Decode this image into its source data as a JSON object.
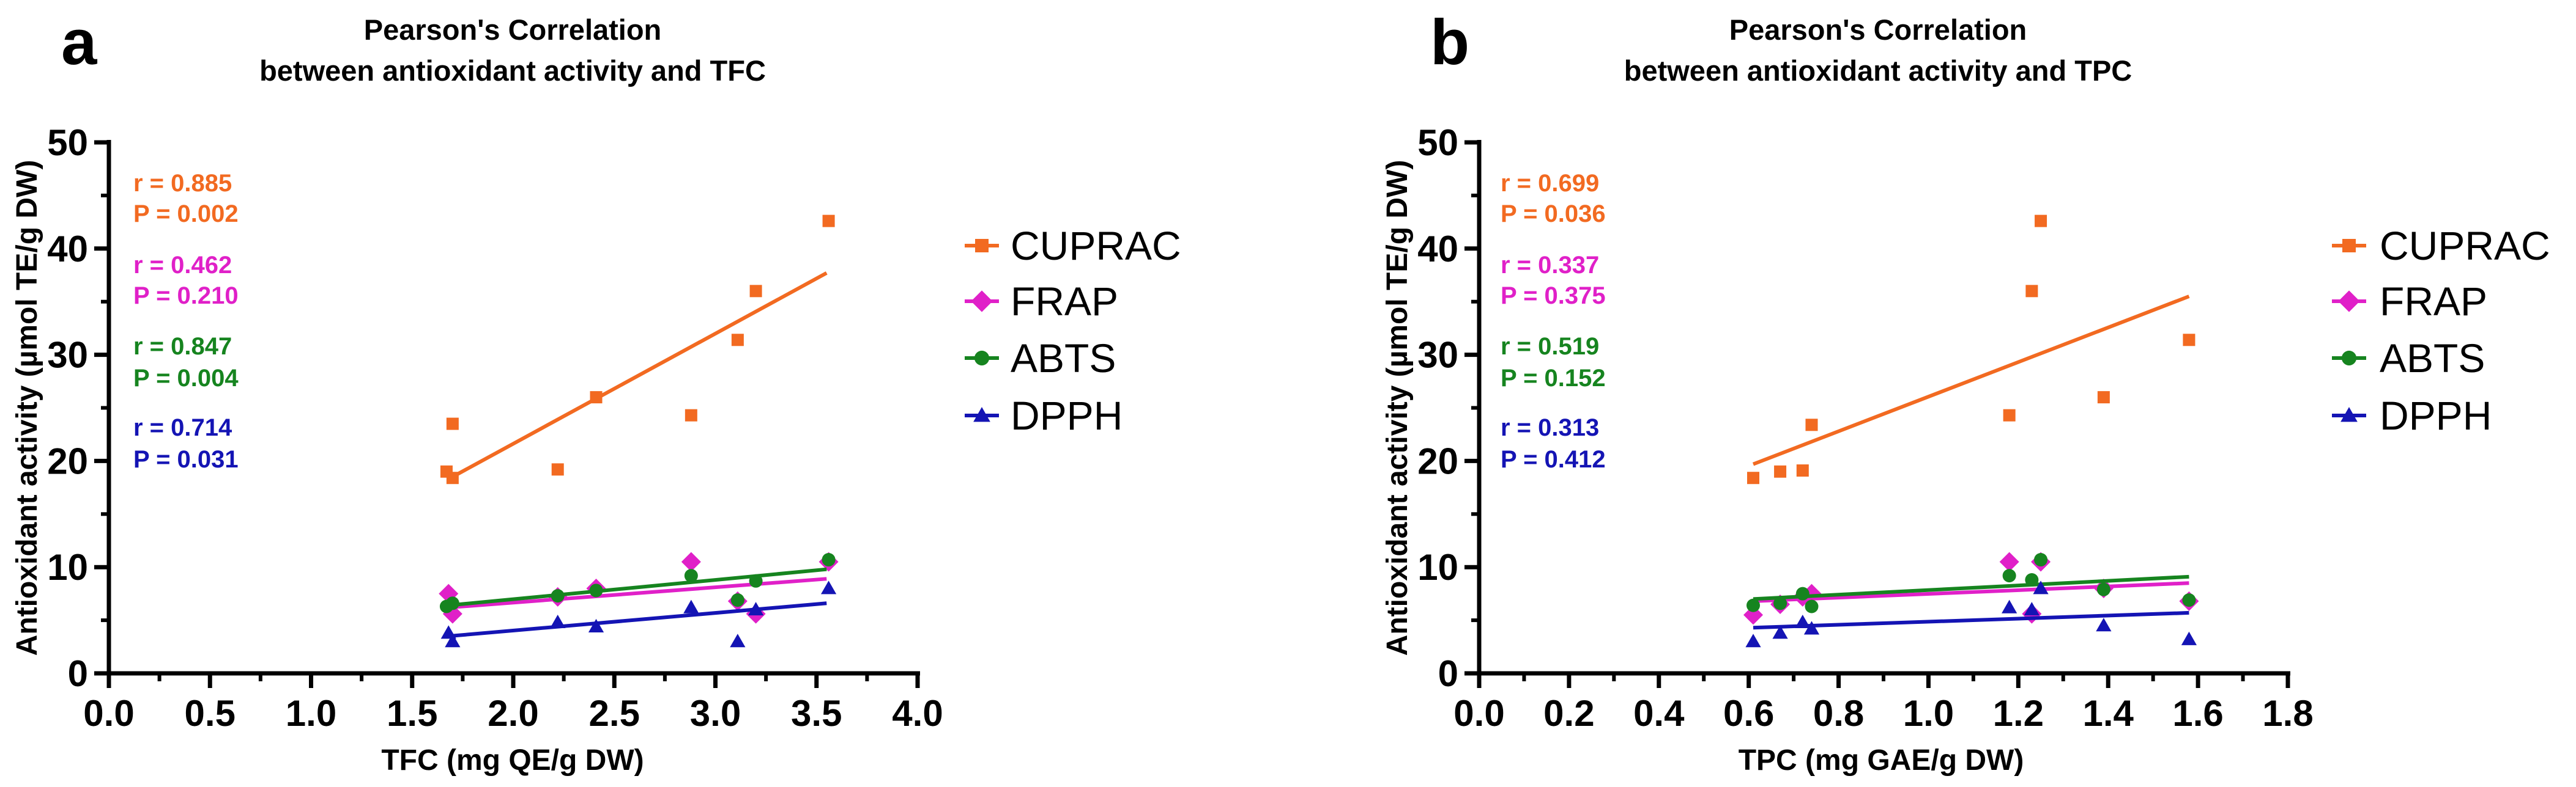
{
  "chart_data": [
    {
      "type": "scatter",
      "panel_label": "a",
      "title_line1": "Pearson's Correlation",
      "title_line2": "between antioxidant activity and TFC",
      "xlabel": "TFC (mg QE/g DW)",
      "ylabel": "Antioxidant activity (µmol TE/g DW)",
      "xlim": [
        0,
        4.0
      ],
      "ylim": [
        0,
        50
      ],
      "xticks": [
        "0.0",
        "0.5",
        "1.0",
        "1.5",
        "2.0",
        "2.5",
        "3.0",
        "3.5",
        "4.0"
      ],
      "yticks": [
        "0",
        "10",
        "20",
        "30",
        "40",
        "50"
      ],
      "series": [
        {
          "name": "CUPRAC",
          "color": "#F26A21",
          "marker": "square",
          "r_label": "r = 0.885",
          "p_label": "P = 0.002",
          "fit": [
            [
              1.68,
              18.3
            ],
            [
              3.55,
              37.7
            ]
          ],
          "points": [
            [
              1.67,
              19.0
            ],
            [
              1.7,
              18.4
            ],
            [
              1.7,
              23.5
            ],
            [
              2.22,
              19.2
            ],
            [
              2.41,
              26.0
            ],
            [
              2.88,
              24.3
            ],
            [
              3.11,
              31.4
            ],
            [
              3.2,
              36.0
            ],
            [
              3.56,
              42.6
            ]
          ]
        },
        {
          "name": "FRAP",
          "color": "#E020C8",
          "marker": "diamond",
          "r_label": "r = 0.462",
          "p_label": "P = 0.210",
          "fit": [
            [
              1.68,
              6.2
            ],
            [
              3.55,
              8.9
            ]
          ],
          "points": [
            [
              1.68,
              7.5
            ],
            [
              1.7,
              5.6
            ],
            [
              2.22,
              7.2
            ],
            [
              2.41,
              8.0
            ],
            [
              2.88,
              10.5
            ],
            [
              3.11,
              6.8
            ],
            [
              3.2,
              5.6
            ],
            [
              3.56,
              10.5
            ]
          ]
        },
        {
          "name": "ABTS",
          "color": "#16841F",
          "marker": "circle",
          "r_label": "r = 0.847",
          "p_label": "P = 0.004",
          "fit": [
            [
              1.68,
              6.4
            ],
            [
              3.55,
              9.8
            ]
          ],
          "points": [
            [
              1.67,
              6.3
            ],
            [
              1.7,
              6.6
            ],
            [
              2.22,
              7.3
            ],
            [
              2.41,
              7.8
            ],
            [
              2.88,
              9.2
            ],
            [
              3.11,
              6.9
            ],
            [
              3.2,
              8.7
            ],
            [
              3.56,
              10.7
            ]
          ]
        },
        {
          "name": "DPPH",
          "color": "#1414B4",
          "marker": "triangle",
          "r_label": "r = 0.714",
          "p_label": "P = 0.031",
          "fit": [
            [
              1.68,
              3.5
            ],
            [
              3.55,
              6.6
            ]
          ],
          "points": [
            [
              1.68,
              3.8
            ],
            [
              1.7,
              3.0
            ],
            [
              2.22,
              4.8
            ],
            [
              2.41,
              4.4
            ],
            [
              2.88,
              6.2
            ],
            [
              3.11,
              3.0
            ],
            [
              3.2,
              6.0
            ],
            [
              3.56,
              8.0
            ]
          ]
        }
      ]
    },
    {
      "type": "scatter",
      "panel_label": "b",
      "title_line1": "Pearson's Correlation",
      "title_line2": "between antioxidant activity and TPC",
      "xlabel": "TPC (mg GAE/g DW)",
      "ylabel": "Antioxidant activity (µmol TE/g DW)",
      "xlim": [
        0,
        1.8
      ],
      "ylim": [
        0,
        50
      ],
      "xticks": [
        "0.0",
        "0.2",
        "0.4",
        "0.6",
        "0.8",
        "1.0",
        "1.2",
        "1.4",
        "1.6",
        "1.8"
      ],
      "yticks": [
        "0",
        "10",
        "20",
        "30",
        "40",
        "50"
      ],
      "series": [
        {
          "name": "CUPRAC",
          "color": "#F26A21",
          "marker": "square",
          "r_label": "r = 0.699",
          "p_label": "P = 0.036",
          "fit": [
            [
              0.61,
              19.7
            ],
            [
              1.58,
              35.5
            ]
          ],
          "points": [
            [
              0.61,
              18.4
            ],
            [
              0.67,
              19.0
            ],
            [
              0.72,
              19.1
            ],
            [
              0.74,
              23.4
            ],
            [
              1.18,
              24.3
            ],
            [
              1.23,
              36.0
            ],
            [
              1.25,
              42.6
            ],
            [
              1.39,
              26.0
            ],
            [
              1.58,
              31.4
            ]
          ]
        },
        {
          "name": "FRAP",
          "color": "#E020C8",
          "marker": "diamond",
          "r_label": "r = 0.337",
          "p_label": "P = 0.375",
          "fit": [
            [
              0.61,
              6.8
            ],
            [
              1.58,
              8.5
            ]
          ],
          "points": [
            [
              0.61,
              5.5
            ],
            [
              0.67,
              6.5
            ],
            [
              0.72,
              7.2
            ],
            [
              0.74,
              7.5
            ],
            [
              1.18,
              10.5
            ],
            [
              1.23,
              5.6
            ],
            [
              1.25,
              10.5
            ],
            [
              1.39,
              8.0
            ],
            [
              1.58,
              6.8
            ]
          ]
        },
        {
          "name": "ABTS",
          "color": "#16841F",
          "marker": "circle",
          "r_label": "r = 0.519",
          "p_label": "P = 0.152",
          "fit": [
            [
              0.61,
              7.0
            ],
            [
              1.58,
              9.1
            ]
          ],
          "points": [
            [
              0.61,
              6.4
            ],
            [
              0.67,
              6.6
            ],
            [
              0.72,
              7.5
            ],
            [
              0.74,
              6.3
            ],
            [
              1.18,
              9.2
            ],
            [
              1.23,
              8.8
            ],
            [
              1.25,
              10.7
            ],
            [
              1.39,
              7.9
            ],
            [
              1.58,
              6.9
            ]
          ]
        },
        {
          "name": "DPPH",
          "color": "#1414B4",
          "marker": "triangle",
          "r_label": "r = 0.313",
          "p_label": "P = 0.412",
          "fit": [
            [
              0.61,
              4.3
            ],
            [
              1.58,
              5.7
            ]
          ],
          "points": [
            [
              0.61,
              3.0
            ],
            [
              0.67,
              3.8
            ],
            [
              0.72,
              4.8
            ],
            [
              0.74,
              4.2
            ],
            [
              1.18,
              6.2
            ],
            [
              1.23,
              6.0
            ],
            [
              1.25,
              8.0
            ],
            [
              1.39,
              4.5
            ],
            [
              1.58,
              3.2
            ]
          ]
        }
      ]
    }
  ]
}
